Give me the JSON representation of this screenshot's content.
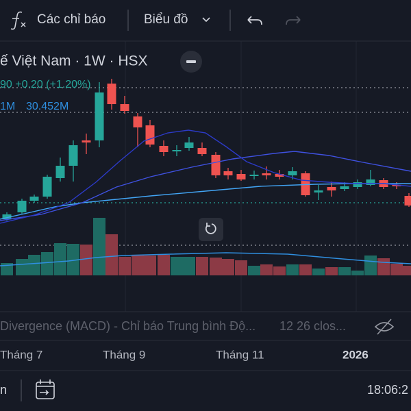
{
  "toolbar": {
    "indicators": "Các chỉ báo",
    "chart": "Biểu đồ"
  },
  "legend": {
    "symbol": "ế Việt Nam · 1W · HSX",
    "price": "90 +0.20 (+1.20%)",
    "volume_prefix": "1M",
    "volume": "30.452M"
  },
  "indicator": {
    "name": "Divergence (MACD) - Chỉ báo Trung bình Độ...",
    "params": "12 26 clos..."
  },
  "x_axis": [
    "Tháng 7",
    "Tháng 9",
    "Tháng 11",
    "2026"
  ],
  "footer": {
    "range": "n",
    "time": "18:06:2"
  }
}
